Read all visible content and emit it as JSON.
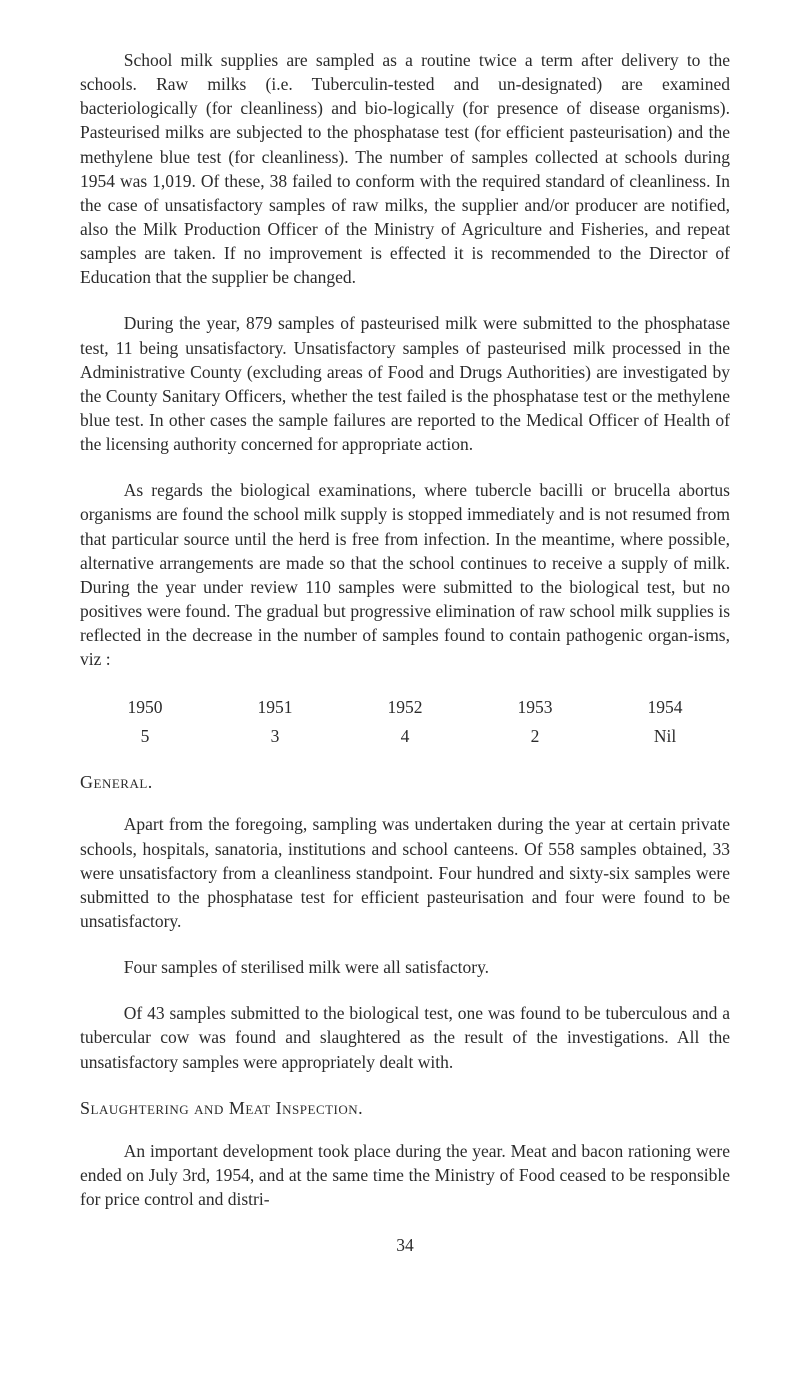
{
  "paragraphs": {
    "p1": "School milk supplies are sampled as a routine twice a term after delivery to the schools. Raw milks (i.e. Tuberculin-tested and un-designated) are examined bacteriologically (for cleanliness) and bio-logically (for presence of disease organisms). Pasteurised milks are subjected to the phosphatase test (for efficient pasteurisation) and the methylene blue test (for cleanliness). The number of samples collected at schools during 1954 was 1,019. Of these, 38 failed to conform with the required standard of cleanliness. In the case of unsatisfactory samples of raw milks, the supplier and/or producer are notified, also the Milk Production Officer of the Ministry of Agriculture and Fisheries, and repeat samples are taken. If no improvement is effected it is recommended to the Director of Education that the supplier be changed.",
    "p2": "During the year, 879 samples of pasteurised milk were submitted to the phosphatase test, 11 being unsatisfactory. Unsatisfactory samples of pasteurised milk processed in the Administrative County (excluding areas of Food and Drugs Authorities) are investigated by the County Sanitary Officers, whether the test failed is the phosphatase test or the methylene blue test. In other cases the sample failures are reported to the Medical Officer of Health of the licensing authority concerned for appropriate action.",
    "p3": "As regards the biological examinations, where tubercle bacilli or brucella abortus organisms are found the school milk supply is stopped immediately and is not resumed from that particular source until the herd is free from infection. In the meantime, where possible, alternative arrangements are made so that the school continues to receive a supply of milk. During the year under review 110 samples were submitted to the biological test, but no positives were found. The gradual but progressive elimination of raw school milk supplies is reflected in the decrease in the number of samples found to contain pathogenic organ-isms, viz :",
    "p4": "Apart from the foregoing, sampling was undertaken during the year at certain private schools, hospitals, sanatoria, institutions and school canteens. Of 558 samples obtained, 33 were unsatisfactory from a cleanliness standpoint. Four hundred and sixty-six samples were submitted to the phosphatase test for efficient pasteurisation and four were found to be unsatisfactory.",
    "p5": "Four samples of sterilised milk were all satisfactory.",
    "p6": "Of 43 samples submitted to the biological test, one was found to be tuberculous and a tubercular cow was found and slaughtered as the result of the investigations. All the unsatisfactory samples were appropriately dealt with.",
    "p7": "An important development took place during the year. Meat and bacon rationing were ended on July 3rd, 1954, and at the same time the Ministry of Food ceased to be responsible for price control and distri-"
  },
  "headings": {
    "general": "General.",
    "slaughtering": "Slaughtering and Meat Inspection."
  },
  "table": {
    "type": "table",
    "years": [
      "1950",
      "1951",
      "1952",
      "1953",
      "1954"
    ],
    "values": [
      "5",
      "3",
      "4",
      "2",
      "Nil"
    ],
    "text_color": "#2b2b2b",
    "fontsize": 17.5
  },
  "page_number": "34",
  "colors": {
    "background": "#ffffff",
    "text": "#2b2b2b"
  },
  "typography": {
    "body_fontsize": 17.5,
    "heading_fontsize": 18,
    "font_family": "Georgia, Times New Roman, serif",
    "line_height": 1.38
  }
}
